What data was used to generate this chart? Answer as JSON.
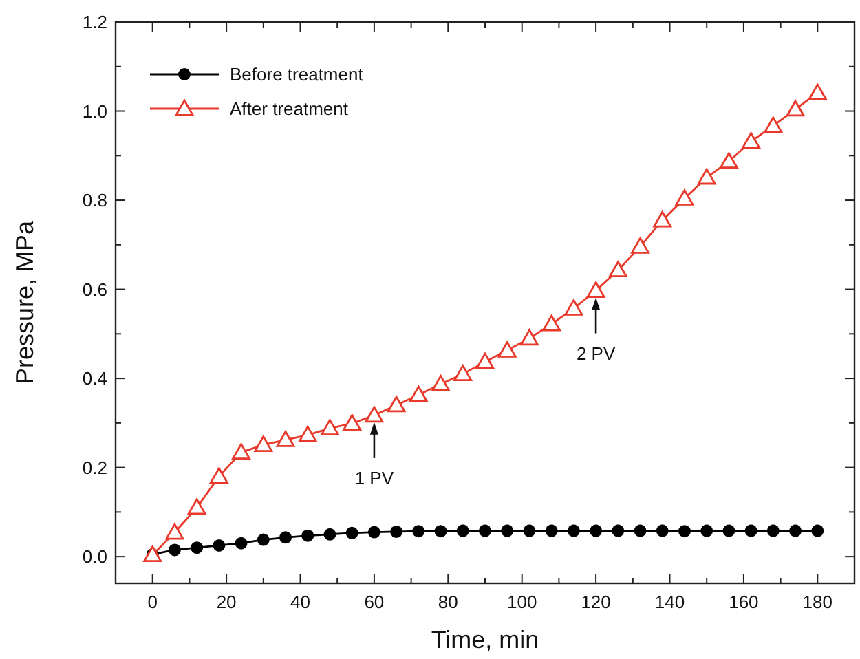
{
  "chart_data": {
    "type": "line",
    "xlabel": "Time, min",
    "ylabel": "Pressure, MPa",
    "x": [
      0,
      6,
      12,
      18,
      24,
      30,
      36,
      42,
      48,
      54,
      60,
      66,
      72,
      78,
      84,
      90,
      96,
      102,
      108,
      114,
      120,
      126,
      132,
      138,
      144,
      150,
      156,
      162,
      168,
      174,
      180
    ],
    "series": [
      {
        "name": "Before treatment",
        "color": "#000000",
        "marker": "circle",
        "values": [
          0.005,
          0.015,
          0.02,
          0.025,
          0.03,
          0.038,
          0.043,
          0.047,
          0.05,
          0.053,
          0.055,
          0.056,
          0.057,
          0.057,
          0.058,
          0.058,
          0.058,
          0.058,
          0.058,
          0.058,
          0.058,
          0.058,
          0.058,
          0.058,
          0.057,
          0.058,
          0.058,
          0.058,
          0.058,
          0.058,
          0.058
        ]
      },
      {
        "name": "After treatment",
        "color": "#e8392b",
        "marker": "triangle",
        "values": [
          0.004,
          0.054,
          0.11,
          0.18,
          0.234,
          0.251,
          0.262,
          0.273,
          0.288,
          0.299,
          0.317,
          0.34,
          0.363,
          0.387,
          0.41,
          0.437,
          0.463,
          0.49,
          0.522,
          0.557,
          0.597,
          0.643,
          0.696,
          0.755,
          0.804,
          0.851,
          0.887,
          0.932,
          0.967,
          1.004,
          1.041
        ]
      }
    ],
    "xlim": [
      -10,
      190
    ],
    "xticks": [
      0,
      {
        "value": 10,
        "label": null
      },
      20,
      {
        "value": 30,
        "label": null
      },
      40,
      {
        "value": 50,
        "label": null
      },
      60,
      {
        "value": 70,
        "label": null
      },
      80,
      {
        "value": 90,
        "label": null
      },
      100,
      {
        "value": 110,
        "label": null
      },
      120,
      {
        "value": 130,
        "label": null
      },
      140,
      {
        "value": 150,
        "label": null
      },
      160,
      {
        "value": 170,
        "label": null
      },
      180
    ],
    "ylim": [
      -0.06,
      1.2
    ],
    "yticks": [
      {
        "value": 0,
        "label": "0.0"
      },
      {
        "value": 0.1,
        "label": null
      },
      0.2,
      {
        "value": 0.3,
        "label": null
      },
      0.4,
      {
        "value": 0.5,
        "label": null
      },
      0.6,
      {
        "value": 0.7,
        "label": null
      },
      0.8,
      {
        "value": 0.9,
        "label": null
      },
      {
        "value": 1,
        "label": "1.0"
      },
      {
        "value": 1.1,
        "label": null
      },
      1.2
    ],
    "annotations": [
      {
        "text": "1 PV",
        "x": 60,
        "y": 0.317
      },
      {
        "text": "2 PV",
        "x": 120,
        "y": 0.597
      }
    ],
    "legend": "top left",
    "grid": false,
    "line_style": "solid"
  }
}
